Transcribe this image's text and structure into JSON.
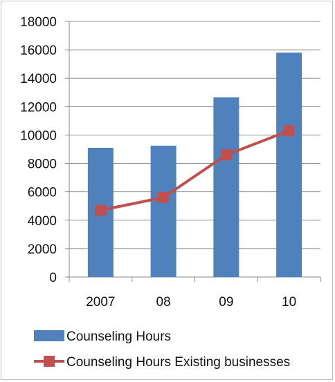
{
  "chart_data": {
    "type": "bar",
    "categories": [
      "2007",
      "08",
      "09",
      "10"
    ],
    "series": [
      {
        "name": "Counseling Hours",
        "kind": "bar",
        "values": [
          9100,
          9250,
          12650,
          15800
        ],
        "color": "#4f81bd"
      },
      {
        "name": "Counseling Hours Existing businesses",
        "kind": "line",
        "values": [
          4700,
          5600,
          8600,
          10300
        ],
        "color": "#c0504d"
      }
    ],
    "ylim": [
      0,
      18000
    ],
    "yticks": [
      0,
      2000,
      4000,
      6000,
      8000,
      10000,
      12000,
      14000,
      16000,
      18000
    ],
    "grid": true,
    "legend": "bottom",
    "title": "",
    "xlabel": "",
    "ylabel": ""
  }
}
